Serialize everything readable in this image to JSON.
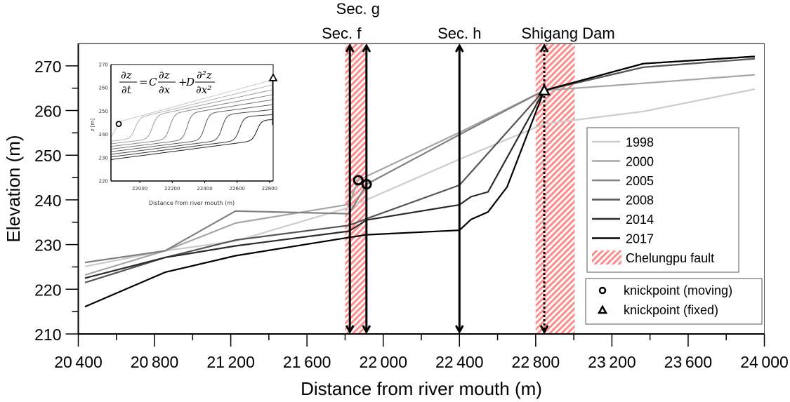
{
  "chart_data": {
    "type": "line",
    "title": "",
    "xlabel": "Distance from river mouth (m)",
    "ylabel": "Elevation (m)",
    "xlim": [
      20400,
      24000
    ],
    "ylim": [
      210,
      275
    ],
    "xticks": [
      20400,
      20800,
      21200,
      21600,
      22000,
      22400,
      22800,
      23200,
      23600,
      24000
    ],
    "xtick_labels": [
      "20 400",
      "20 800",
      "21 200",
      "21 600",
      "22 000",
      "22 400",
      "22 800",
      "23 200",
      "23 600",
      "24 000"
    ],
    "yticks": [
      210,
      220,
      230,
      240,
      250,
      260,
      270
    ],
    "ytick_labels": [
      "210",
      "220",
      "230",
      "240",
      "250",
      "260",
      "270"
    ],
    "grid": false,
    "legend_position": "right",
    "series": [
      {
        "name": "1998",
        "color": "#cccccc",
        "x": [
          20435,
          20855,
          21225,
          21820,
          22400,
          22845,
          23365,
          23950
        ],
        "y": [
          225.1,
          228.6,
          230.8,
          238.3,
          249.1,
          257.0,
          259.8,
          264.8
        ]
      },
      {
        "name": "2000",
        "color": "#a6a6a6",
        "x": [
          20435,
          20855,
          21225,
          21820,
          21869,
          22400,
          22845,
          23365,
          23950
        ],
        "y": [
          223.2,
          228.6,
          234.8,
          239.0,
          244.4,
          255.1,
          264.5,
          266.1,
          268.0
        ]
      },
      {
        "name": "2005",
        "color": "#808080",
        "x": [
          20435,
          20855,
          21225,
          21820,
          21913,
          22400,
          22845,
          23365,
          23950
        ],
        "y": [
          226.0,
          228.6,
          237.5,
          236.9,
          243.5,
          254.6,
          264.5,
          269.7,
          271.6
        ]
      },
      {
        "name": "2008",
        "color": "#555555",
        "x": [
          20435,
          20855,
          21225,
          21820,
          21913,
          22400,
          22845,
          23365,
          23950
        ],
        "y": [
          221.5,
          227.1,
          231.0,
          234.3,
          235.8,
          243.3,
          264.5,
          269.7,
          271.6
        ]
      },
      {
        "name": "2014",
        "color": "#2a2a2a",
        "x": [
          20435,
          20855,
          21225,
          21820,
          21913,
          22400,
          22460,
          22550,
          22845,
          23365,
          23950
        ],
        "y": [
          222.5,
          227.1,
          229.7,
          233.0,
          235.5,
          238.9,
          240.7,
          241.8,
          264.5,
          270.5,
          272.1
        ]
      },
      {
        "name": "2017",
        "color": "#000000",
        "x": [
          20435,
          20855,
          21225,
          21820,
          21913,
          22400,
          22460,
          22550,
          22650,
          22845,
          23365,
          23950
        ],
        "y": [
          216.1,
          223.8,
          227.5,
          231.6,
          232.2,
          233.2,
          235.6,
          237.3,
          242.9,
          264.5,
          270.5,
          272.1
        ]
      }
    ],
    "fault_zones": [
      {
        "name": "Chelungpu fault",
        "x_range": [
          21800,
          21915
        ],
        "color": "#ff7f7f"
      },
      {
        "name": "Chelungpu fault",
        "x_range": [
          22800,
          23005
        ],
        "color": "#ff7f7f"
      }
    ],
    "sections": [
      {
        "label": "Sec. f",
        "x": 21825,
        "style": "solid"
      },
      {
        "label": "Sec. g",
        "x": 21912,
        "style": "solid"
      },
      {
        "label": "Sec. h",
        "x": 22400,
        "style": "solid"
      },
      {
        "label": "Shigang Dam",
        "x": 22845,
        "style": "dotted"
      }
    ],
    "knickpoints": [
      {
        "type": "moving",
        "x": 21869,
        "y": 244.4
      },
      {
        "type": "moving",
        "x": 21913,
        "y": 243.5
      },
      {
        "type": "fixed",
        "x": 22845,
        "y": 264.5
      }
    ],
    "legend": {
      "entries": [
        "1998",
        "2000",
        "2005",
        "2008",
        "2014",
        "2017",
        "Chelungpu fault"
      ],
      "markers": [
        "knickpoint (moving)",
        "knickpoint (fixed)"
      ]
    },
    "inset": {
      "equation": "∂z/∂t = C ∂z/∂x + D ∂²z/∂x²",
      "eq_parts": {
        "lhs_num": "∂z",
        "lhs_den": "∂t",
        "eq": "=",
        "c": "C",
        "t1_num": "∂z",
        "t1_den": "∂x",
        "plus": "+",
        "d": "D",
        "t2_num": "∂²z",
        "t2_den": "∂x²"
      },
      "xlabel": "Distance from river mouth (m)",
      "ylabel": "z [m]",
      "xlim": [
        21822,
        22822
      ],
      "ylim": [
        220,
        270
      ],
      "xticks": [
        22000,
        22200,
        22400,
        22600,
        22800
      ],
      "yticks": [
        220,
        230,
        240,
        250,
        260,
        270
      ],
      "curve_count": 9,
      "knickpoint_moving": {
        "x": 21870,
        "y": 244.5
      },
      "knickpoint_fixed": {
        "x": 22822,
        "y": 264
      }
    }
  }
}
